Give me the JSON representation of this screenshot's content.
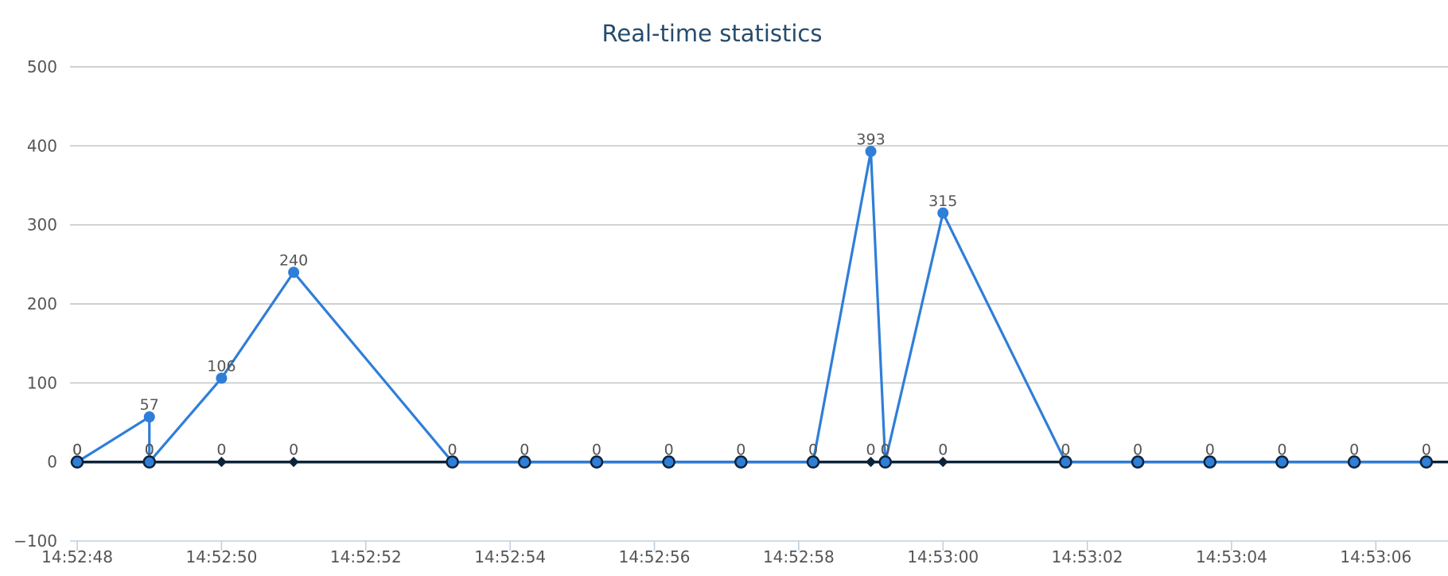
{
  "chart_data": {
    "type": "line",
    "title": "Real-time statistics",
    "xlabel": "",
    "ylabel": "",
    "ylim": [
      -100,
      500
    ],
    "xlim": [
      "14:52:47.9",
      "14:53:07.0"
    ],
    "grid": true,
    "legend": "none",
    "y_ticks": [
      -100,
      0,
      100,
      200,
      300,
      400,
      500
    ],
    "x_ticks": [
      "14:52:48",
      "14:52:50",
      "14:52:52",
      "14:52:54",
      "14:52:56",
      "14:52:58",
      "14:53:00",
      "14:53:02",
      "14:53:04",
      "14:53:06"
    ],
    "series": [
      {
        "color": "#2f7ed8",
        "marker": "circle",
        "x": [
          "14:52:48.0",
          "14:52:49.0",
          "14:52:49.0",
          "14:52:50.0",
          "14:52:51.0",
          "14:52:53.2",
          "14:52:54.2",
          "14:52:55.2",
          "14:52:56.2",
          "14:52:57.2",
          "14:52:58.2",
          "14:52:59.0",
          "14:52:59.2",
          "14:53:00.0",
          "14:53:01.7",
          "14:53:02.7",
          "14:53:03.7",
          "14:53:04.7",
          "14:53:05.7",
          "14:53:06.7"
        ],
        "values": [
          0,
          57,
          0,
          106,
          240,
          0,
          0,
          0,
          0,
          0,
          0,
          393,
          0,
          315,
          0,
          0,
          0,
          0,
          0,
          0
        ],
        "labels": [
          "0",
          "57",
          "0",
          "106",
          "240",
          "0",
          "0",
          "0",
          "0",
          "0",
          "0",
          "393",
          "0",
          "315",
          "0",
          "0",
          "0",
          "0",
          "0",
          "0"
        ]
      },
      {
        "color": "#0d233a",
        "marker": "diamond",
        "x": [
          "14:52:48.0",
          "14:52:49.0",
          "14:52:50.0",
          "14:52:51.0",
          "14:52:59.0",
          "14:53:00.0"
        ],
        "values": [
          0,
          0,
          0,
          0,
          0,
          0
        ],
        "labels": [
          "0",
          "0",
          "0",
          "0",
          "0",
          "0"
        ]
      }
    ]
  }
}
